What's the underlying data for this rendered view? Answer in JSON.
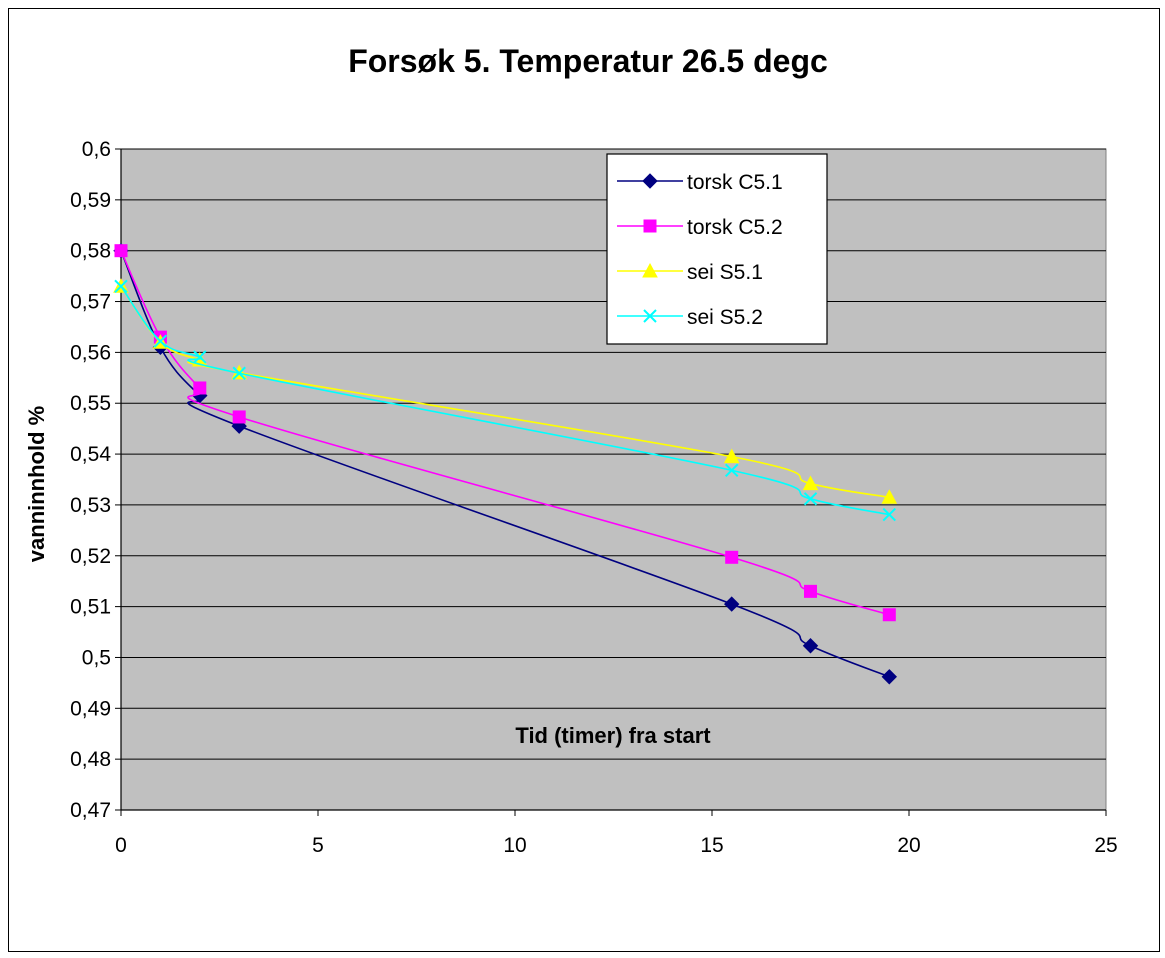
{
  "chart_data": {
    "type": "line",
    "title": "Forsøk 5. Temperatur 26.5 degc",
    "xlabel": "Tid (timer) fra start",
    "ylabel": "vanninnhold %",
    "xlim": [
      0,
      25
    ],
    "ylim": [
      0.47,
      0.6
    ],
    "xticks": [
      0,
      5,
      10,
      15,
      20,
      25
    ],
    "xtick_labels": [
      "0",
      "5",
      "10",
      "15",
      "20",
      "25"
    ],
    "yticks": [
      0.47,
      0.48,
      0.49,
      0.5,
      0.51,
      0.52,
      0.53,
      0.54,
      0.55,
      0.56,
      0.57,
      0.58,
      0.59,
      0.6
    ],
    "ytick_labels": [
      "0,47",
      "0,48",
      "0,49",
      "0,5",
      "0,51",
      "0,52",
      "0,53",
      "0,54",
      "0,55",
      "0,56",
      "0,57",
      "0,58",
      "0,59",
      "0,6"
    ],
    "grid": "horizontal",
    "plot_background": "#c0c0c0",
    "legend_position": "top-right",
    "series": [
      {
        "name": "torsk C5.1",
        "color": "#000080",
        "marker": "diamond",
        "x": [
          0,
          1,
          2,
          3,
          15.5,
          17.5,
          19.5
        ],
        "y": [
          0.58,
          0.561,
          0.5515,
          0.5455,
          0.5105,
          0.5023,
          0.4962
        ]
      },
      {
        "name": "torsk C5.2",
        "color": "#ff00ff",
        "marker": "square",
        "x": [
          0,
          1,
          2,
          3,
          15.5,
          17.5,
          19.5
        ],
        "y": [
          0.58,
          0.563,
          0.553,
          0.5473,
          0.5197,
          0.513,
          0.5084
        ]
      },
      {
        "name": "sei S5.1",
        "color": "#ffff00",
        "marker": "triangle",
        "x": [
          0,
          1,
          2,
          3,
          15.5,
          17.5,
          19.5
        ],
        "y": [
          0.573,
          0.562,
          0.5585,
          0.556,
          0.5395,
          0.5342,
          0.5315
        ]
      },
      {
        "name": "sei S5.2",
        "color": "#00ffff",
        "marker": "x",
        "x": [
          0,
          1,
          2,
          3,
          15.5,
          17.5,
          19.5
        ],
        "y": [
          0.573,
          0.5622,
          0.5591,
          0.5559,
          0.5368,
          0.5312,
          0.5281
        ]
      }
    ]
  }
}
